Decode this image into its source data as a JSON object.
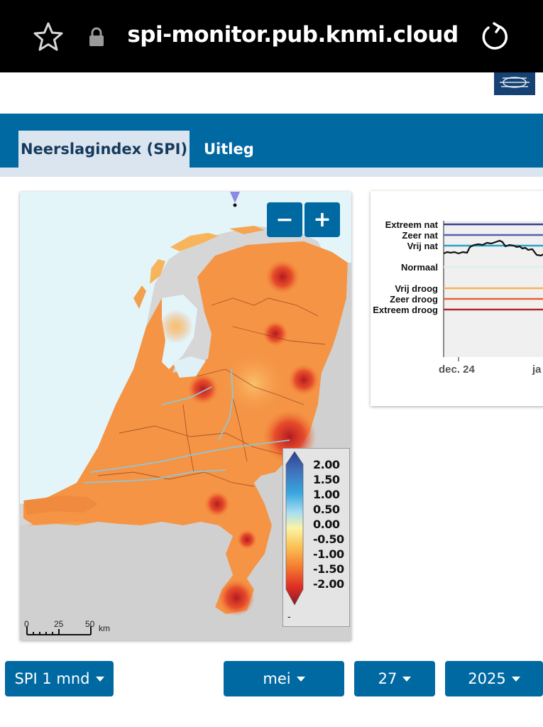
{
  "browser": {
    "url": "spi-monitor.pub.knmi.cloud"
  },
  "tabs": [
    {
      "label": "Neerslagindex (SPI)",
      "active": true
    },
    {
      "label": "Uitleg",
      "active": false
    }
  ],
  "map": {
    "zoom_out_label": "−",
    "zoom_in_label": "+",
    "legend": {
      "ticks": [
        "2.00",
        "1.50",
        "1.00",
        "0.50",
        "0.00",
        "-0.50",
        "-1.00",
        "-1.50",
        "-2.00"
      ],
      "nodata_label": "-",
      "colors": [
        "#2c3f8f",
        "#3f6fb8",
        "#39a6e0",
        "#a9dff0",
        "#fbf4a4",
        "#fbc256",
        "#f57d31",
        "#e02f24",
        "#8e1a23"
      ]
    },
    "scalebar": {
      "labels": [
        "0",
        "25",
        "50"
      ],
      "unit": "km"
    }
  },
  "chart": {
    "categories": [
      "Extreem nat",
      "Zeer nat",
      "Vrij nat",
      "Normaal",
      "Vrij droog",
      "Zeer droog",
      "Extreem droog"
    ],
    "category_colors": [
      "#3b3f8f",
      "#5560b0",
      "#29a3c6",
      "#dcefef",
      "#f6b45a",
      "#e5622e",
      "#b12a2a"
    ],
    "x_ticks": [
      "dec. 24",
      "ja"
    ]
  },
  "controls": {
    "index": "SPI 1 mnd",
    "month": "mei",
    "day": "27",
    "year": "2025"
  }
}
